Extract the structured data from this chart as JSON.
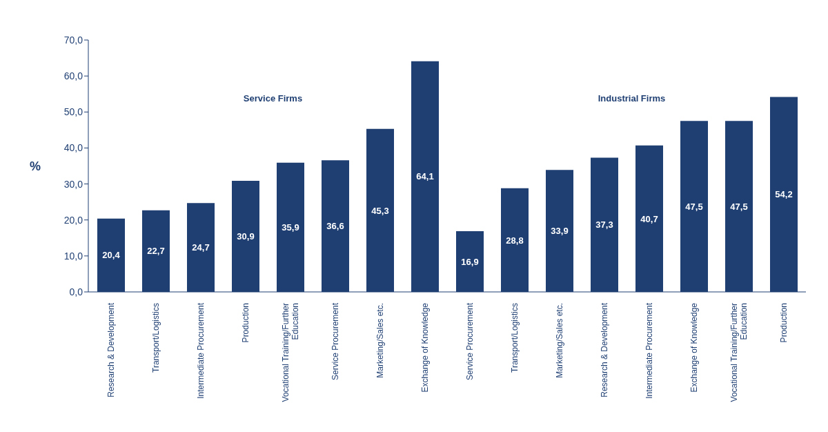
{
  "chart_data": {
    "type": "bar",
    "ylabel": "%",
    "categories": [
      "Research & Development",
      "Transport/Logistics",
      "Intermediate Procurement",
      "Production",
      "Vocational Training/Further Education",
      "Service Procurement",
      "Marketing/Sales etc.",
      "Exchange of Knowledge",
      "Service Procurement",
      "Transport/Logistics",
      "Marketing/Sales etc.",
      "Research & Development",
      "Intermediate Procurement",
      "Exchange of Knowledge",
      "Vocational Training/Further Education",
      "Production"
    ],
    "values": [
      20.4,
      22.7,
      24.7,
      30.9,
      35.9,
      36.6,
      45.3,
      64.1,
      16.9,
      28.8,
      33.9,
      37.3,
      40.7,
      47.5,
      47.5,
      54.2
    ],
    "value_labels": [
      "20,4",
      "22,7",
      "24,7",
      "30,9",
      "35,9",
      "36,6",
      "45,3",
      "64,1",
      "16,9",
      "28,8",
      "33,9",
      "37,3",
      "40,7",
      "47,5",
      "47,5",
      "54,2"
    ],
    "color": "#1f3f73",
    "ylim": [
      0,
      70
    ],
    "yticks": [
      {
        "value": 0,
        "label": "0,0"
      },
      {
        "value": 10,
        "label": "10,0"
      },
      {
        "value": 20,
        "label": "20,0"
      },
      {
        "value": 30,
        "label": "30,0"
      },
      {
        "value": 40,
        "label": "40,0"
      },
      {
        "value": 50,
        "label": "50,0"
      },
      {
        "value": 60,
        "label": "60,0"
      },
      {
        "value": 70,
        "label": "70,0"
      }
    ],
    "annotations": [
      "Service Firms",
      "Industrial Firms"
    ]
  }
}
